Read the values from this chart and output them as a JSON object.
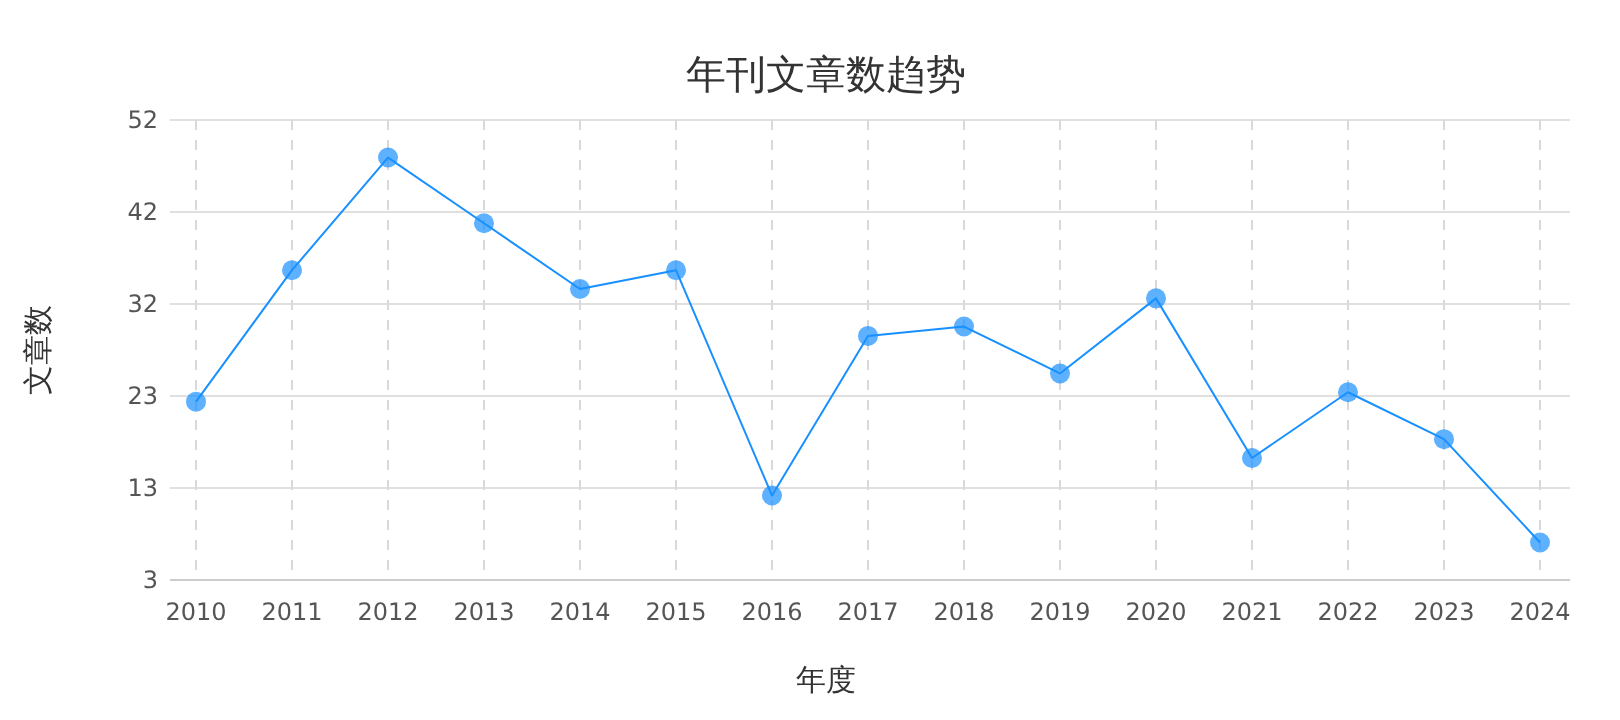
{
  "chart_data": {
    "type": "line",
    "title": "年刊文章数趋势",
    "xlabel": "年度",
    "ylabel": "文章数",
    "categories": [
      "2010",
      "2011",
      "2012",
      "2013",
      "2014",
      "2015",
      "2016",
      "2017",
      "2018",
      "2019",
      "2020",
      "2021",
      "2022",
      "2023",
      "2024"
    ],
    "series": [
      {
        "color": "#1890ff",
        "values": [
          22,
          36,
          48,
          41,
          34,
          36,
          12,
          29,
          30,
          25,
          33,
          16,
          23,
          18,
          7
        ]
      }
    ],
    "ylim": [
      3,
      52
    ],
    "yticks": [
      {
        "value": 3,
        "label": "3"
      },
      {
        "value": 12.8,
        "label": "13"
      },
      {
        "value": 22.6,
        "label": "23"
      },
      {
        "value": 32.4,
        "label": "32"
      },
      {
        "value": 42.2,
        "label": "42"
      },
      {
        "value": 52,
        "label": "52"
      }
    ],
    "grid": true,
    "marker": "circle",
    "line_style": "solid"
  }
}
